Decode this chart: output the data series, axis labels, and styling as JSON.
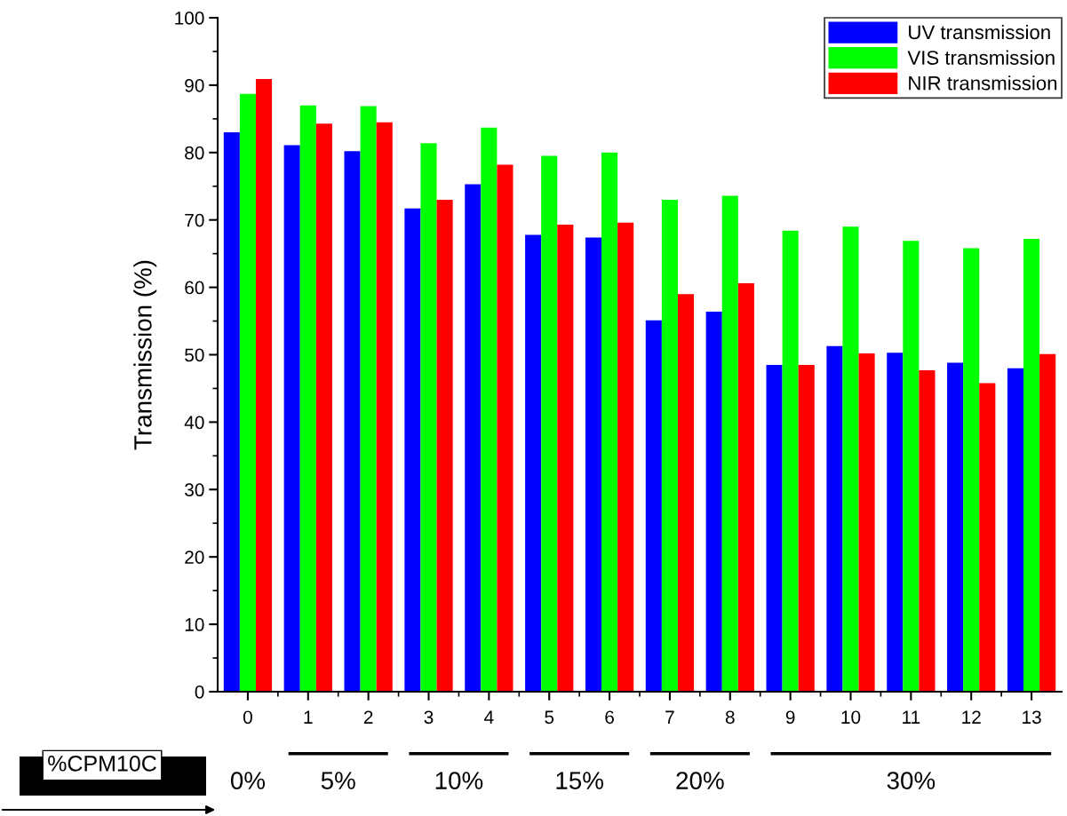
{
  "chart_data": {
    "type": "bar",
    "ylabel": "Transmission (%)",
    "categories": [
      "0",
      "1",
      "2",
      "3",
      "4",
      "5",
      "6",
      "7",
      "8",
      "9",
      "10",
      "11",
      "12",
      "13"
    ],
    "series": [
      {
        "name": "UV transmission",
        "color": "#0000ff",
        "values": [
          83.0,
          81.1,
          80.2,
          71.7,
          75.3,
          67.8,
          67.4,
          55.1,
          56.4,
          48.5,
          51.3,
          50.3,
          48.8,
          48.0
        ]
      },
      {
        "name": "VIS transmission",
        "color": "#00ff00",
        "values": [
          88.7,
          87.0,
          86.9,
          81.4,
          83.7,
          79.5,
          80.0,
          73.0,
          73.6,
          68.4,
          69.0,
          66.9,
          65.8,
          67.2
        ]
      },
      {
        "name": "NIR transmission",
        "color": "#ff0000",
        "values": [
          90.9,
          84.3,
          84.5,
          73.0,
          78.2,
          69.3,
          69.6,
          59.0,
          60.6,
          48.5,
          50.2,
          47.7,
          45.8,
          50.1
        ]
      }
    ],
    "ylim": [
      0,
      100
    ],
    "yticks": [
      0,
      10,
      20,
      30,
      40,
      50,
      60,
      70,
      80,
      90,
      100
    ],
    "legend": "top right",
    "grid": false,
    "annotations": [
      "%CPM10C",
      "0%",
      "5%",
      "10%",
      "15%",
      "20%",
      "30%"
    ]
  }
}
